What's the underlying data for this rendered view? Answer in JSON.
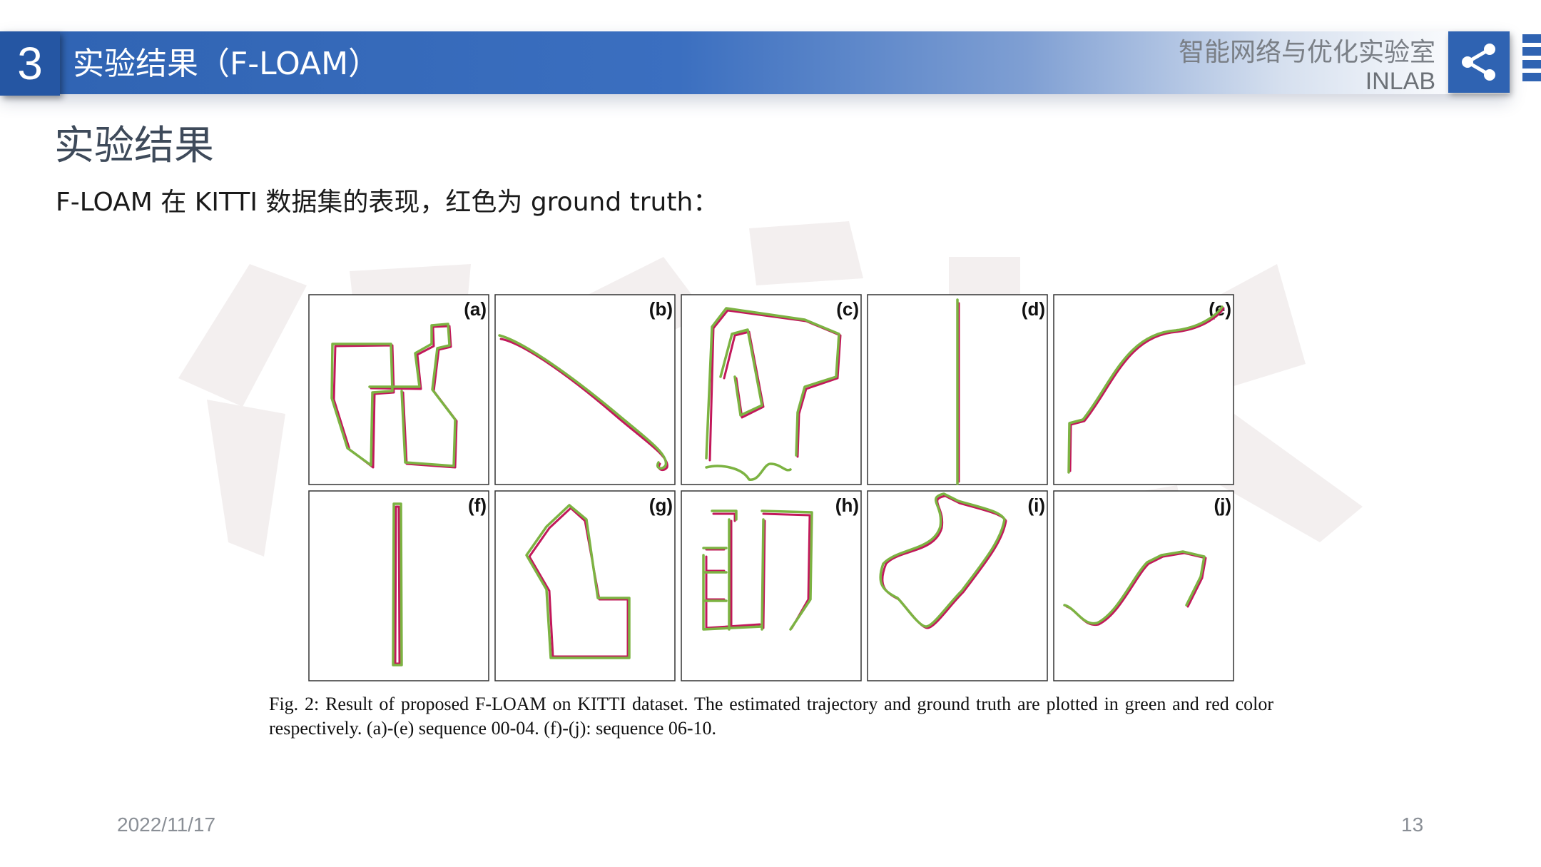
{
  "header": {
    "section_number": "3",
    "title": "实验结果（F-LOAM）",
    "lab_name": "智能网络与优化实验室",
    "lab_abbr": "INLAB",
    "share_icon": "share-icon"
  },
  "slide": {
    "heading": "实验结果",
    "subtitle": "F-LOAM 在 KITTI 数据集的表现，红色为 ground truth："
  },
  "figure": {
    "panel_labels": [
      "(a)",
      "(b)",
      "(c)",
      "(d)",
      "(e)",
      "(f)",
      "(g)",
      "(h)",
      "(i)",
      "(j)"
    ],
    "caption": "Fig. 2: Result of proposed F-LOAM on KITTI dataset. The estimated trajectory and ground truth are plotted in green and red color respectively. (a)-(e) sequence 00-04. (f)-(j): sequence 06-10.",
    "colors": {
      "estimated": "#7cb342",
      "ground_truth": "#c2185b"
    }
  },
  "footer": {
    "date": "2022/11/17",
    "page": "13"
  }
}
